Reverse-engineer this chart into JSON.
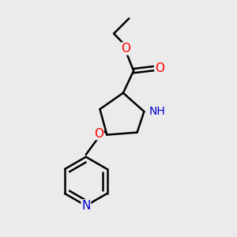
{
  "bg_color": "#ebebeb",
  "bond_color": "#000000",
  "bond_width": 1.8,
  "atom_colors": {
    "O": "#ff0000",
    "N": "#0000cd",
    "C": "#000000",
    "H": "#000000"
  },
  "font_size": 10,
  "fig_size": [
    3.0,
    3.0
  ],
  "dpi": 100,
  "xlim": [
    0,
    10
  ],
  "ylim": [
    0,
    10
  ]
}
